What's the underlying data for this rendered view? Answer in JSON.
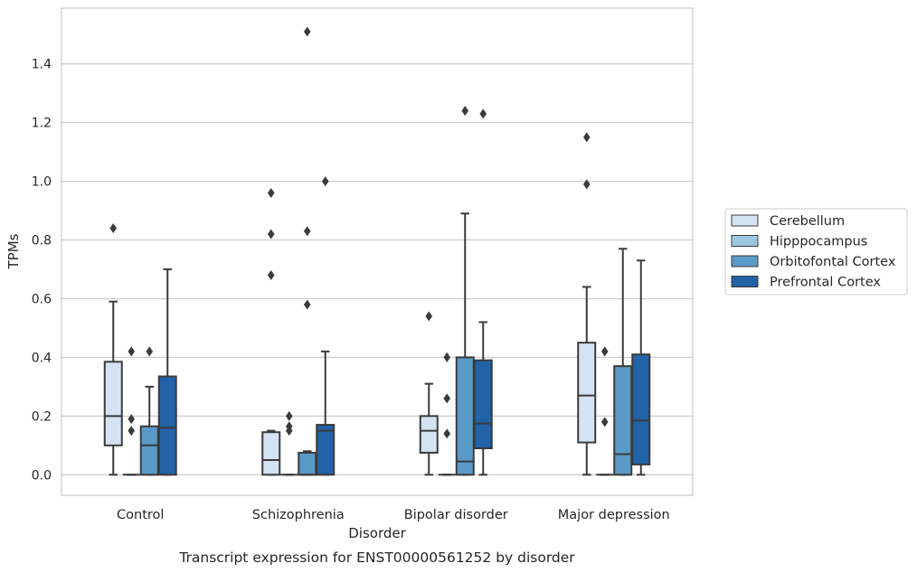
{
  "chart_data": {
    "type": "box",
    "caption": "Transcript expression for ENST00000561252 by disorder",
    "xlabel": "Disorder",
    "ylabel": "TPMs",
    "ylim": [
      -0.07,
      1.59
    ],
    "yticks": [
      0.0,
      0.2,
      0.4,
      0.6,
      0.8,
      1.0,
      1.2,
      1.4
    ],
    "ytick_labels": [
      "0.0",
      "0.2",
      "0.4",
      "0.6",
      "0.8",
      "1.0",
      "1.2",
      "1.4"
    ],
    "grid": true,
    "legend_position": "right",
    "categories": [
      "Control",
      "Schizophrenia",
      "Bipolar disorder",
      "Major depression"
    ],
    "series": [
      {
        "name": "Cerebellum",
        "color": "#d3e3f3",
        "boxes": [
          {
            "whislo": 0.0,
            "q1": 0.1,
            "median": 0.2,
            "q3": 0.385,
            "whishi": 0.59,
            "fliers": [
              0.84
            ]
          },
          {
            "whislo": 0.0,
            "q1": 0.0,
            "median": 0.05,
            "q3": 0.145,
            "whishi": 0.15,
            "fliers": [
              0.68,
              0.82,
              0.96
            ]
          },
          {
            "whislo": 0.0,
            "q1": 0.075,
            "median": 0.15,
            "q3": 0.2,
            "whishi": 0.31,
            "fliers": [
              0.54
            ]
          },
          {
            "whislo": 0.0,
            "q1": 0.11,
            "median": 0.27,
            "q3": 0.45,
            "whishi": 0.64,
            "fliers": [
              0.99,
              1.15
            ]
          }
        ]
      },
      {
        "name": "Hipppocampus",
        "color": "#9ac8e0",
        "boxes": [
          {
            "whislo": 0.0,
            "q1": 0.0,
            "median": 0.0,
            "q3": 0.0,
            "whishi": 0.0,
            "fliers": [
              0.15,
              0.19,
              0.42
            ]
          },
          {
            "whislo": 0.0,
            "q1": 0.0,
            "median": 0.0,
            "q3": 0.0,
            "whishi": 0.0,
            "fliers": [
              0.15,
              0.165,
              0.2
            ]
          },
          {
            "whislo": 0.0,
            "q1": 0.0,
            "median": 0.0,
            "q3": 0.0,
            "whishi": 0.0,
            "fliers": [
              0.14,
              0.26,
              0.4
            ]
          },
          {
            "whislo": 0.0,
            "q1": 0.0,
            "median": 0.0,
            "q3": 0.0,
            "whishi": 0.0,
            "fliers": [
              0.18,
              0.42
            ]
          }
        ]
      },
      {
        "name": "Orbitofontal Cortex",
        "color": "#5a9ac8",
        "boxes": [
          {
            "whislo": 0.0,
            "q1": 0.0,
            "median": 0.1,
            "q3": 0.165,
            "whishi": 0.3,
            "fliers": [
              0.42
            ]
          },
          {
            "whislo": 0.0,
            "q1": 0.0,
            "median": 0.0,
            "q3": 0.075,
            "whishi": 0.08,
            "fliers": [
              0.58,
              0.83,
              1.51
            ]
          },
          {
            "whislo": 0.0,
            "q1": 0.0,
            "median": 0.045,
            "q3": 0.4,
            "whishi": 0.89,
            "fliers": [
              1.24
            ]
          },
          {
            "whislo": 0.0,
            "q1": 0.0,
            "median": 0.07,
            "q3": 0.37,
            "whishi": 0.77,
            "fliers": []
          }
        ]
      },
      {
        "name": "Prefrontal Cortex",
        "color": "#2262a6",
        "boxes": [
          {
            "whislo": 0.0,
            "q1": 0.0,
            "median": 0.16,
            "q3": 0.335,
            "whishi": 0.7,
            "fliers": []
          },
          {
            "whislo": 0.0,
            "q1": 0.0,
            "median": 0.15,
            "q3": 0.17,
            "whishi": 0.42,
            "fliers": [
              1.0
            ]
          },
          {
            "whislo": 0.0,
            "q1": 0.09,
            "median": 0.175,
            "q3": 0.39,
            "whishi": 0.52,
            "fliers": [
              1.23
            ]
          },
          {
            "whislo": 0.0,
            "q1": 0.035,
            "median": 0.185,
            "q3": 0.41,
            "whishi": 0.73,
            "fliers": []
          }
        ]
      }
    ]
  }
}
